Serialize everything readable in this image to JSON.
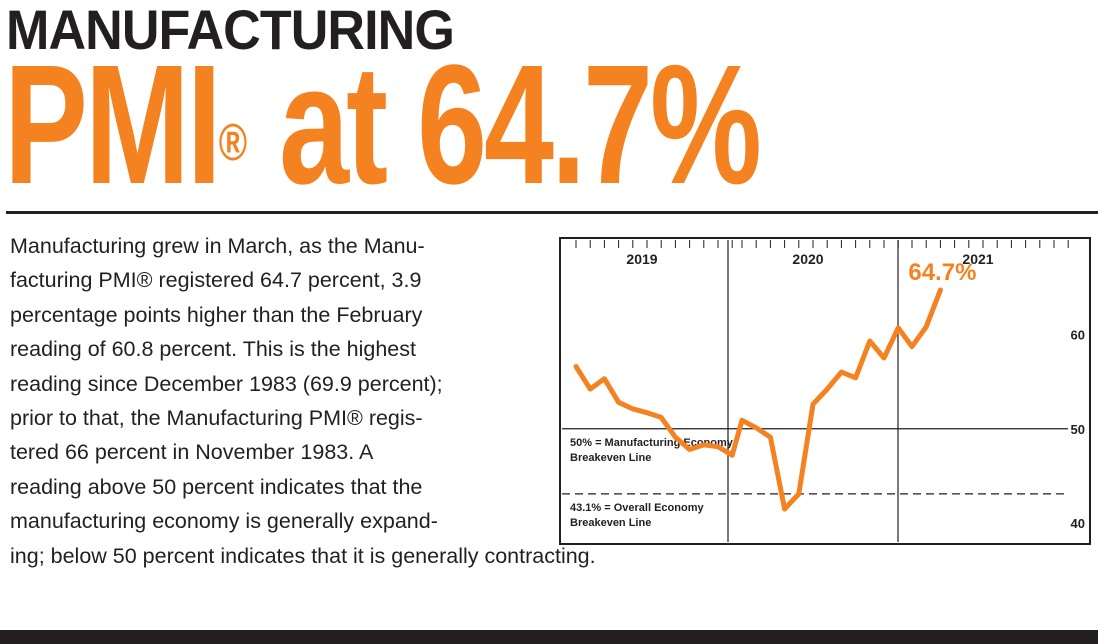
{
  "headline": {
    "line1": "MANUFACTURING",
    "line2_prefix": "PMI",
    "line2_reg": "®",
    "line2_suffix": " at 64.7%"
  },
  "body_lines": [
    "Manufacturing grew in March, as the Manu-",
    "facturing PMI® registered 64.7 percent, 3.9",
    "percentage points higher than the February",
    "reading of 60.8 percent. This is the highest",
    "reading since December 1983 (69.9 percent);",
    "prior to that, the Manufacturing PMI® regis-",
    "tered 66 percent in November 1983. A",
    "reading above 50 percent indicates that the",
    "manufacturing economy is generally expand-",
    "ing; below 50 percent indicates that it is generally contracting."
  ],
  "chart_data": {
    "type": "line",
    "series": [
      {
        "name": "Manufacturing PMI",
        "color": "#f58220",
        "x": [
          "2019-01",
          "2019-02",
          "2019-03",
          "2019-04",
          "2019-05",
          "2019-06",
          "2019-07",
          "2019-08",
          "2019-09",
          "2019-10",
          "2019-11",
          "2019-12",
          "2020-01",
          "2020-02",
          "2020-03",
          "2020-04",
          "2020-05",
          "2020-06",
          "2020-07",
          "2020-08",
          "2020-09",
          "2020-10",
          "2020-11",
          "2020-12",
          "2021-01",
          "2021-02",
          "2021-03"
        ],
        "values": [
          56.6,
          54.2,
          55.3,
          52.8,
          52.1,
          51.7,
          51.2,
          49.1,
          47.8,
          48.3,
          48.1,
          47.2,
          50.9,
          50.1,
          49.1,
          41.5,
          43.1,
          52.6,
          54.2,
          56.0,
          55.4,
          59.3,
          57.5,
          60.7,
          58.7,
          60.8,
          64.7
        ]
      }
    ],
    "years": [
      "2019",
      "2020",
      "2021"
    ],
    "ylim": [
      38,
      70
    ],
    "yticks": [
      "40",
      "50",
      "60"
    ],
    "reference_lines": [
      {
        "value": 50,
        "label_lines": [
          "50% = Manufacturing Economy",
          "Breakeven Line"
        ]
      },
      {
        "value": 43.1,
        "label_lines": [
          "43.1% = Overall Economy",
          "Breakeven Line"
        ]
      }
    ],
    "callout": "64.7%"
  }
}
